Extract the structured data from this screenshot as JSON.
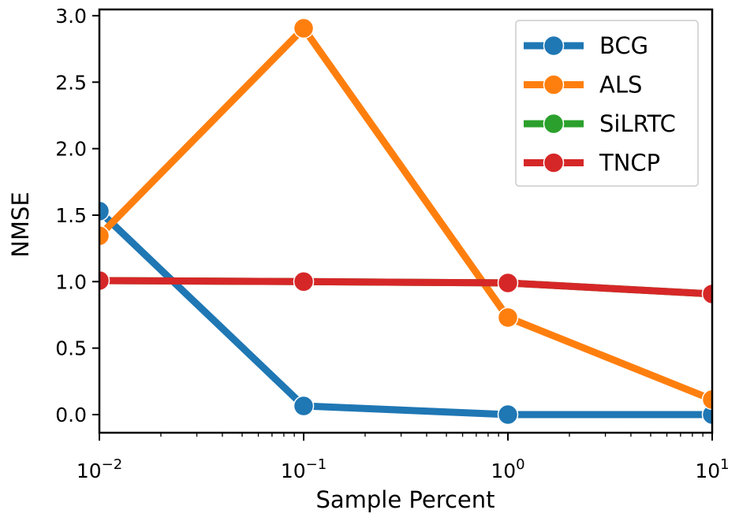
{
  "chart_data": {
    "type": "line",
    "xlabel": "Sample Percent",
    "ylabel": "NMSE",
    "xscale": "log",
    "xlim": [
      0.01,
      10
    ],
    "ylim": [
      -0.14,
      3.05
    ],
    "x": [
      0.01,
      0.1,
      1,
      10
    ],
    "x_tick_labels": [
      {
        "base": "10",
        "exp": "−2"
      },
      {
        "base": "10",
        "exp": "−1"
      },
      {
        "base": "10",
        "exp": "0"
      },
      {
        "base": "10",
        "exp": "1"
      }
    ],
    "y_ticks": [
      0.0,
      0.5,
      1.0,
      1.5,
      2.0,
      2.5,
      3.0
    ],
    "y_tick_labels": [
      "0.0",
      "0.5",
      "1.0",
      "1.5",
      "2.0",
      "2.5",
      "3.0"
    ],
    "grid": false,
    "legend_position": "top-right",
    "series": [
      {
        "name": "BCG",
        "color": "#1f77b4",
        "values": [
          1.53,
          0.065,
          0.0,
          0.0
        ]
      },
      {
        "name": "ALS",
        "color": "#ff7f0e",
        "values": [
          1.345,
          2.905,
          0.73,
          0.113
        ]
      },
      {
        "name": "SiLRTC",
        "color": "#2ca02c",
        "values": [
          1.008,
          1.0,
          0.99,
          0.907
        ]
      },
      {
        "name": "TNCP",
        "color": "#d62728",
        "values": [
          1.008,
          1.0,
          0.99,
          0.907
        ]
      }
    ]
  }
}
